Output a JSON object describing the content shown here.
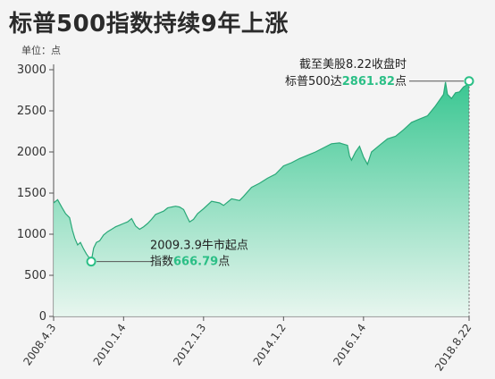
{
  "title": "标普500指数持续9年上涨",
  "unit_label": "单位：点",
  "colors": {
    "fill_top": "#2fc48c",
    "fill_bottom": "#e6f6ee",
    "line": "#2aa878",
    "highlight": "#2bbf86",
    "axis": "#555555"
  },
  "annotations": {
    "low": {
      "line1": "2009.3.9牛市起点",
      "prefix": "指数",
      "value": "666.79",
      "suffix": "点"
    },
    "high": {
      "line1": "截至美股8.22收盘时",
      "prefix": "标普500达",
      "value": "2861.82",
      "suffix": "点"
    }
  },
  "chart_data": {
    "type": "area",
    "title": "标普500指数持续9年上涨",
    "ylabel": "单位：点",
    "xlabel": "",
    "ylim": [
      0,
      3000
    ],
    "yticks": [
      0,
      500,
      1000,
      1500,
      2000,
      2500,
      3000
    ],
    "xtick_labels": [
      "2008.4.3",
      "2010.1.4",
      "2012.1.3",
      "2014.1.2",
      "2016.1.4",
      "2018.8.22"
    ],
    "x_range": [
      2008.25,
      2018.64
    ],
    "xtick_positions": [
      2008.25,
      2010.0,
      2012.0,
      2014.0,
      2016.0,
      2018.64
    ],
    "grid": false,
    "legend": "none",
    "series": [
      {
        "x": [
          2008.25,
          2008.35,
          2008.45,
          2008.55,
          2008.65,
          2008.72,
          2008.78,
          2008.85,
          2008.92,
          2009.0,
          2009.07,
          2009.13,
          2009.19,
          2009.25,
          2009.32,
          2009.4,
          2009.5,
          2009.6,
          2009.7,
          2009.8,
          2009.9,
          2010.0,
          2010.1,
          2010.2,
          2010.3,
          2010.4,
          2010.5,
          2010.6,
          2010.7,
          2010.8,
          2010.9,
          2011.0,
          2011.1,
          2011.2,
          2011.3,
          2011.4,
          2011.5,
          2011.6,
          2011.65,
          2011.75,
          2011.85,
          2012.0,
          2012.2,
          2012.4,
          2012.5,
          2012.7,
          2012.9,
          2013.0,
          2013.2,
          2013.4,
          2013.6,
          2013.8,
          2014.0,
          2014.2,
          2014.4,
          2014.6,
          2014.8,
          2015.0,
          2015.2,
          2015.4,
          2015.6,
          2015.65,
          2015.7,
          2015.8,
          2015.9,
          2016.0,
          2016.1,
          2016.2,
          2016.4,
          2016.6,
          2016.8,
          2017.0,
          2017.2,
          2017.4,
          2017.6,
          2017.8,
          2018.0,
          2018.05,
          2018.1,
          2018.2,
          2018.3,
          2018.4,
          2018.5,
          2018.6,
          2018.64
        ],
        "values": [
          1380,
          1420,
          1330,
          1250,
          1200,
          1050,
          950,
          870,
          900,
          820,
          760,
          720,
          666.79,
          830,
          900,
          920,
          990,
          1030,
          1060,
          1090,
          1110,
          1130,
          1150,
          1190,
          1100,
          1060,
          1090,
          1130,
          1180,
          1240,
          1260,
          1280,
          1320,
          1330,
          1340,
          1330,
          1300,
          1200,
          1150,
          1180,
          1250,
          1310,
          1400,
          1380,
          1350,
          1430,
          1410,
          1460,
          1570,
          1620,
          1680,
          1730,
          1830,
          1870,
          1920,
          1960,
          2000,
          2050,
          2100,
          2110,
          2080,
          1950,
          1900,
          2000,
          2070,
          1940,
          1850,
          2000,
          2080,
          2160,
          2190,
          2270,
          2360,
          2400,
          2440,
          2560,
          2700,
          2850,
          2700,
          2650,
          2720,
          2730,
          2790,
          2820,
          2861.82
        ]
      }
    ],
    "annotations": [
      {
        "text": "2009.3.9牛市起点 指数666.79点",
        "x": 2009.19,
        "y": 666.79
      },
      {
        "text": "截至美股8.22收盘时 标普500达2861.82点",
        "x": 2018.64,
        "y": 2861.82
      }
    ]
  }
}
